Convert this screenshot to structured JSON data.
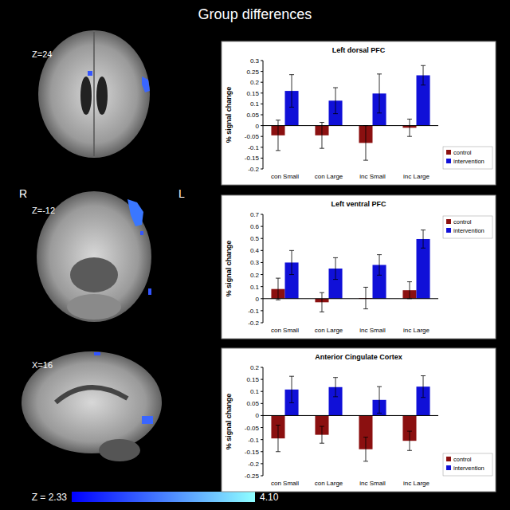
{
  "figure": {
    "title": "Group differences",
    "slices": [
      {
        "label": "Z=24"
      },
      {
        "label": "Z=-12"
      },
      {
        "label": "X=16"
      }
    ],
    "hemispheres": [
      "R",
      "L"
    ],
    "colorbar": {
      "range": [
        2.33,
        4.1
      ],
      "colors": [
        "#0000ff",
        "#8fffff"
      ],
      "ticks": [
        {
          "value": 2.33,
          "label": "Z = 2.33"
        },
        {
          "value": 4.1,
          "label": "4.10"
        }
      ]
    }
  },
  "chart_data": [
    {
      "type": "bar",
      "title": "Left dorsal PFC",
      "y_label": "% signal change",
      "categories": [
        "con Small",
        "con Large",
        "inc Small",
        "inc Large"
      ],
      "series": [
        {
          "name": "control",
          "color": "#8b1010",
          "values": [
            -0.045,
            -0.045,
            -0.08,
            -0.01
          ],
          "errors": [
            0.07,
            0.06,
            0.08,
            0.04
          ]
        },
        {
          "name": "intervention",
          "color": "#1010d8",
          "values": [
            0.16,
            0.115,
            0.148,
            0.232
          ],
          "errors": [
            0.075,
            0.06,
            0.09,
            0.045
          ]
        }
      ],
      "ylim": [
        -0.2,
        0.3
      ],
      "yticks": [
        -0.2,
        -0.15,
        -0.1,
        -0.05,
        0,
        0.05,
        0.1,
        0.15,
        0.2,
        0.25,
        0.3
      ],
      "legend": "bottom-right"
    },
    {
      "type": "bar",
      "title": "Left ventral PFC",
      "y_label": "% signal change",
      "categories": [
        "con Small",
        "con Large",
        "inc Small",
        "inc Large"
      ],
      "series": [
        {
          "name": "control",
          "color": "#8b1010",
          "values": [
            0.08,
            -0.03,
            0.005,
            0.07
          ],
          "errors": [
            0.09,
            0.08,
            0.09,
            0.07
          ]
        },
        {
          "name": "intervention",
          "color": "#1010d8",
          "values": [
            0.3,
            0.25,
            0.28,
            0.495
          ],
          "errors": [
            0.1,
            0.09,
            0.085,
            0.075
          ]
        }
      ],
      "ylim": [
        -0.2,
        0.7
      ],
      "yticks": [
        -0.2,
        -0.1,
        0,
        0.1,
        0.2,
        0.3,
        0.4,
        0.5,
        0.6,
        0.7
      ],
      "legend": "top-right"
    },
    {
      "type": "bar",
      "title": "Anterior Cingulate Cortex",
      "y_label": "% signal change",
      "categories": [
        "con Small",
        "con Large",
        "inc Small",
        "inc Large"
      ],
      "series": [
        {
          "name": "control",
          "color": "#8b1010",
          "values": [
            -0.095,
            -0.08,
            -0.14,
            -0.105
          ],
          "errors": [
            0.055,
            0.035,
            0.05,
            0.04
          ]
        },
        {
          "name": "intervention",
          "color": "#1010d8",
          "values": [
            0.108,
            0.118,
            0.065,
            0.12
          ],
          "errors": [
            0.055,
            0.04,
            0.055,
            0.045
          ]
        }
      ],
      "ylim": [
        -0.25,
        0.2
      ],
      "yticks": [
        -0.25,
        -0.2,
        -0.15,
        -0.1,
        -0.05,
        0,
        0.05,
        0.1,
        0.15,
        0.2
      ],
      "legend": "bottom-right"
    }
  ]
}
